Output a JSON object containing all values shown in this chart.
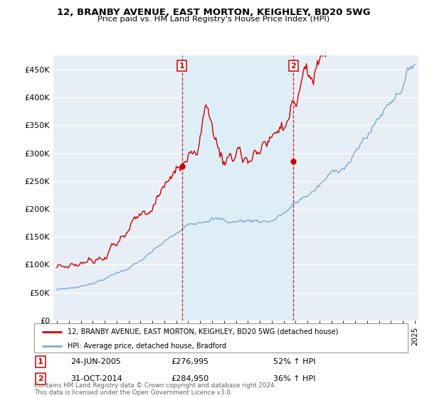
{
  "title1": "12, BRANBY AVENUE, EAST MORTON, KEIGHLEY, BD20 5WG",
  "title2": "Price paid vs. HM Land Registry's House Price Index (HPI)",
  "ytick_values": [
    0,
    50000,
    100000,
    150000,
    200000,
    250000,
    300000,
    350000,
    400000,
    450000
  ],
  "xlim_start": 1994.7,
  "xlim_end": 2025.3,
  "ylim_min": 0,
  "ylim_max": 475000,
  "transaction1_date": 2005.47,
  "transaction1_price": 276995,
  "transaction2_date": 2014.83,
  "transaction2_price": 284950,
  "legend_line1": "12, BRANBY AVENUE, EAST MORTON, KEIGHLEY, BD20 5WG (detached house)",
  "legend_line2": "HPI: Average price, detached house, Bradford",
  "annotation1_date": "24-JUN-2005",
  "annotation1_price": "£276,995",
  "annotation1_hpi": "52% ↑ HPI",
  "annotation2_date": "31-OCT-2014",
  "annotation2_price": "£284,950",
  "annotation2_hpi": "36% ↑ HPI",
  "footer": "Contains HM Land Registry data © Crown copyright and database right 2024.\nThis data is licensed under the Open Government Licence v3.0.",
  "red_color": "#cc0000",
  "blue_color": "#7aabcf",
  "shade_color": "#ddeef7",
  "bg_color": "#e8eef5",
  "grid_color": "#ffffff"
}
